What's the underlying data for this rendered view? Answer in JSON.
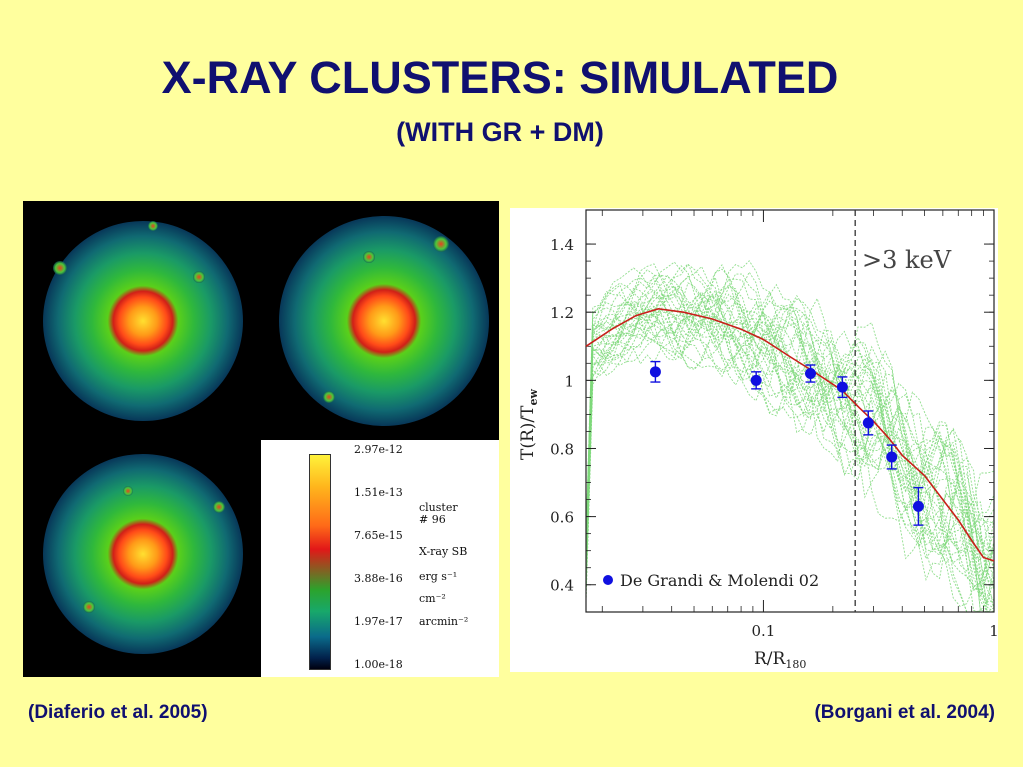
{
  "slide": {
    "title": "X-RAY CLUSTERS: SIMULATED",
    "subtitle": "(WITH GR + DM)",
    "caption_left": "(Diaferio et al. 2005)",
    "caption_right": "(Borgani et al. 2004)"
  },
  "colorbar": {
    "ticks": [
      "2.97e-12",
      "1.51e-13",
      "7.65e-15",
      "3.88e-16",
      "1.97e-17",
      "1.00e-18"
    ],
    "label_lines": [
      "cluster",
      "# 96",
      "X-ray SB",
      "erg s⁻¹",
      "cm⁻²",
      "arcmin⁻²"
    ]
  },
  "chart_data": {
    "type": "line",
    "xlabel_main": "R/R",
    "xlabel_sub": "180",
    "ylabel": "T(R)/T",
    "ylabel_sub": "ew",
    "xscale": "log",
    "xlim": [
      0.017,
      1.0
    ],
    "ylim": [
      0.32,
      1.5
    ],
    "x_ticks": [
      {
        "value": 0.1,
        "label": "0.1"
      },
      {
        "value": 1,
        "label": "1"
      }
    ],
    "y_ticks": [
      0.4,
      0.6,
      0.8,
      1,
      1.2,
      1.4
    ],
    "y_tick_labels": [
      "0.4",
      "0.6",
      "0.8",
      "1",
      "1.2",
      "1.4"
    ],
    "annotation": ">3 keV",
    "threshold_x": 0.25,
    "series": [
      {
        "role": "mean-profile",
        "color": "#c8201a",
        "x": [
          0.017,
          0.022,
          0.028,
          0.035,
          0.045,
          0.06,
          0.08,
          0.1,
          0.13,
          0.17,
          0.22,
          0.26,
          0.3,
          0.35,
          0.4,
          0.5,
          0.6,
          0.7,
          0.8,
          0.9,
          1.0
        ],
        "y": [
          1.1,
          1.15,
          1.19,
          1.21,
          1.2,
          1.18,
          1.15,
          1.12,
          1.07,
          1.02,
          0.97,
          0.92,
          0.88,
          0.83,
          0.78,
          0.72,
          0.65,
          0.59,
          0.53,
          0.48,
          0.47
        ]
      },
      {
        "name": "De Grandi & Molendi 02",
        "role": "observed-points",
        "color": "#1010e0",
        "points": [
          {
            "x": 0.034,
            "y": 1.025,
            "err": 0.03
          },
          {
            "x": 0.093,
            "y": 1.0,
            "err": 0.025
          },
          {
            "x": 0.16,
            "y": 1.02,
            "err": 0.025
          },
          {
            "x": 0.22,
            "y": 0.98,
            "err": 0.03
          },
          {
            "x": 0.285,
            "y": 0.875,
            "err": 0.035
          },
          {
            "x": 0.36,
            "y": 0.775,
            "err": 0.035
          },
          {
            "x": 0.47,
            "y": 0.63,
            "err": 0.055
          }
        ]
      }
    ],
    "simulated_profiles_color": "#7ed87a",
    "legend_position": "bottom-left"
  }
}
